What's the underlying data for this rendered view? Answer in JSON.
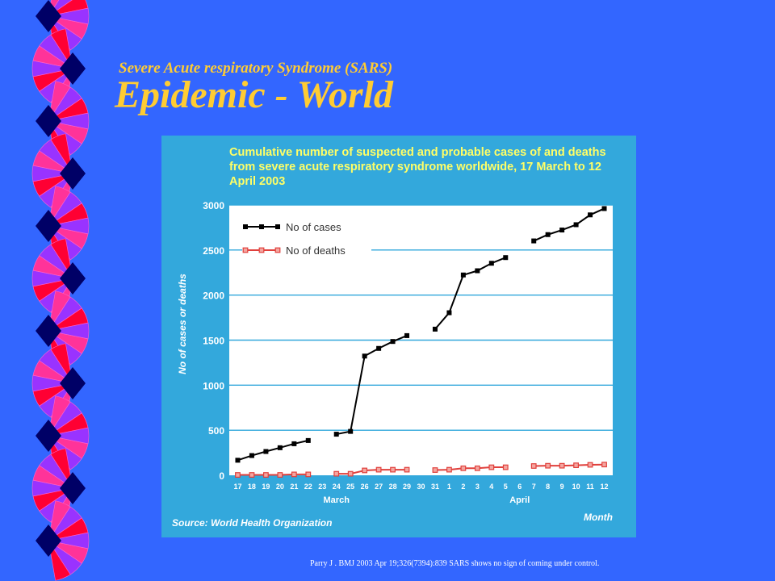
{
  "slide": {
    "subtitle": "Severe Acute respiratory Syndrome (SARS)",
    "title": "Epidemic - World",
    "citation": "Parry J . BMJ 2003 Apr 19;326(7394):839   SARS shows no sign of coming under control."
  },
  "colors": {
    "background": "#3366FF",
    "title": "#FFCC33",
    "chart_bg": "#33A8DC",
    "chart_title": "#FFFF66",
    "plot_bg": "#FFFFFF",
    "gridline": "#33A8DC",
    "cases": "#000000",
    "deaths": "#E0403C",
    "fan_colors": [
      "#FF3399",
      "#FF0033",
      "#9933FF",
      "#000066"
    ]
  },
  "decor": {
    "fan_icon": "fan-pinwheel-icon"
  },
  "chart_data": {
    "type": "line",
    "title": "Cumulative number of suspected and probable cases of and deaths from severe acute respiratory syndrome worldwide, 17 March to 12 April 2003",
    "ylabel": "No of cases or deaths",
    "xlabel": "Month",
    "ylim": [
      0,
      3000
    ],
    "yticks": [
      0,
      500,
      1000,
      1500,
      2000,
      2500,
      3000
    ],
    "x": [
      "17",
      "18",
      "19",
      "20",
      "21",
      "22",
      "23",
      "24",
      "25",
      "26",
      "27",
      "28",
      "29",
      "30",
      "31",
      "1",
      "2",
      "3",
      "4",
      "5",
      "6",
      "7",
      "8",
      "9",
      "10",
      "11",
      "12"
    ],
    "month_labels": [
      {
        "label": "March",
        "at": "24"
      },
      {
        "label": "April",
        "at": "6"
      }
    ],
    "legend": {
      "placement": "top-left"
    },
    "grid": true,
    "source": "Source: World Health Organization",
    "series": [
      {
        "name": "No of cases",
        "values": [
          167,
          219,
          264,
          306,
          350,
          386,
          null,
          456,
          487,
          1323,
          1408,
          1485,
          1550,
          null,
          1622,
          1804,
          2223,
          2270,
          2353,
          2416,
          null,
          2601,
          2671,
          2722,
          2781,
          2890,
          2960
        ]
      },
      {
        "name": "No of deaths",
        "values": [
          4,
          4,
          4,
          4,
          10,
          10,
          null,
          17,
          17,
          54,
          62,
          62,
          62,
          null,
          58,
          62,
          78,
          78,
          89,
          89,
          null,
          103,
          106,
          106,
          111,
          116,
          119
        ]
      }
    ]
  }
}
